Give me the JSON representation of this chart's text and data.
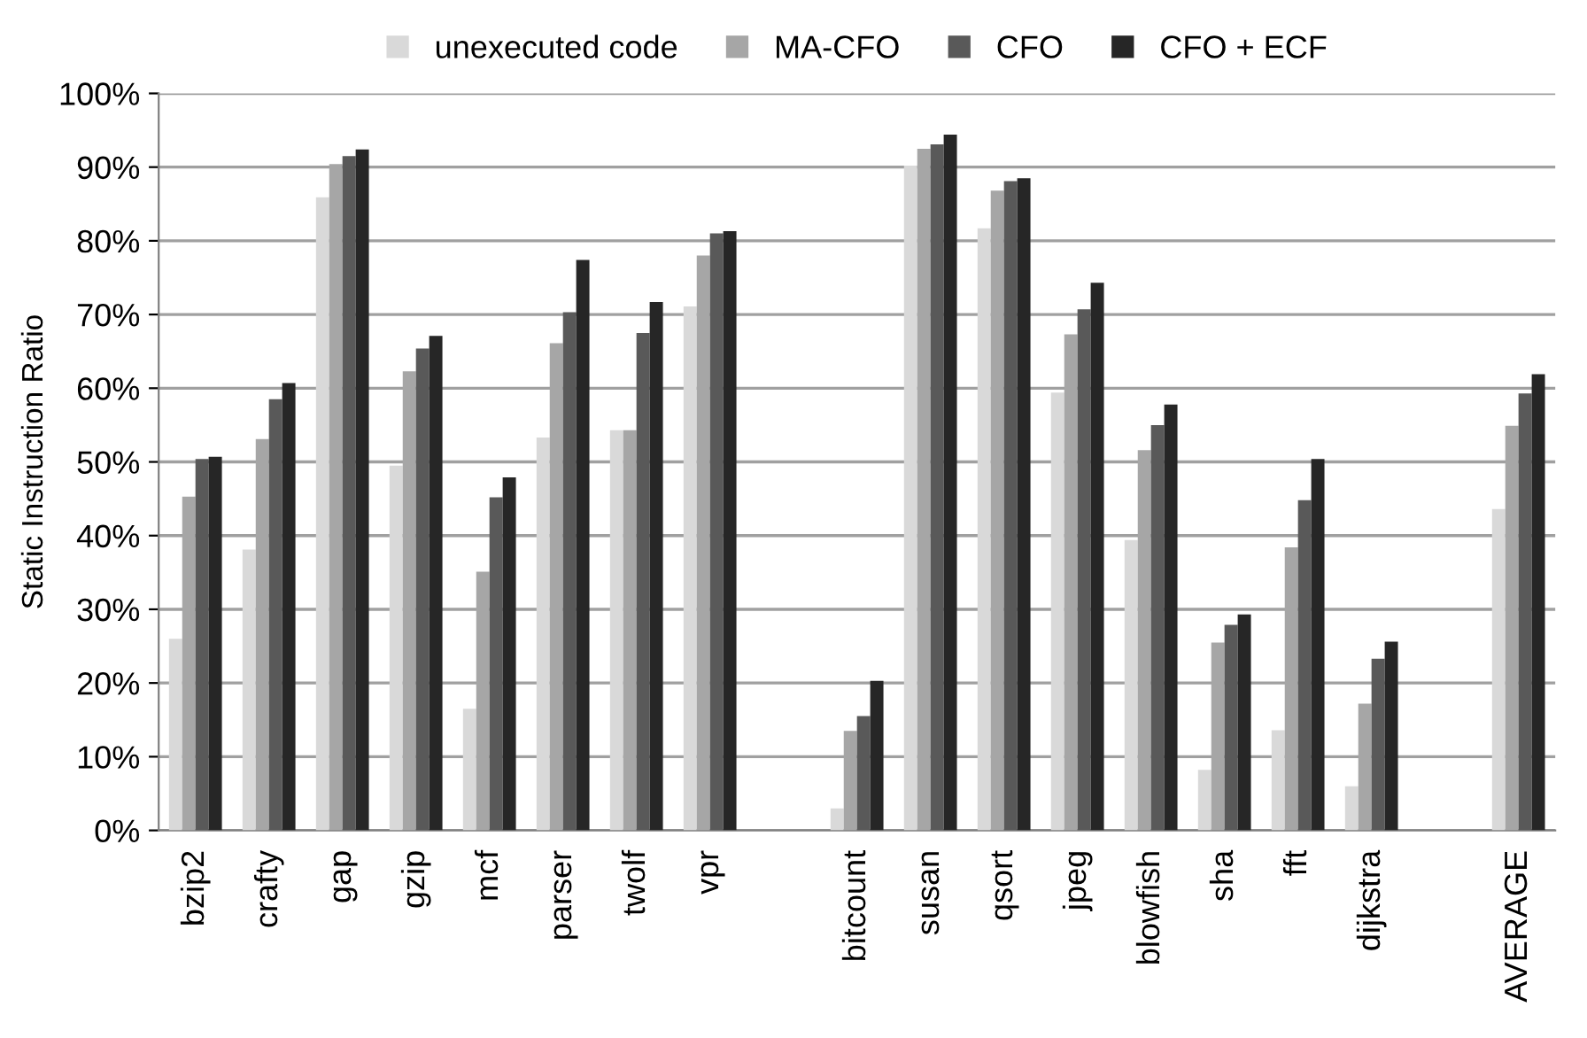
{
  "chart_data": {
    "type": "bar",
    "ylabel": "Static Instruction Ratio",
    "categories": [
      "bzip2",
      "crafty",
      "gap",
      "gzip",
      "mcf",
      "parser",
      "twolf",
      "vpr",
      null,
      "bitcount",
      "susan",
      "qsort",
      "jpeg",
      "blowfish",
      "sha",
      "fft",
      "dijkstra",
      null,
      "AVERAGE"
    ],
    "series": [
      {
        "name": "unexecuted code",
        "color": "#d9d9d9",
        "values": [
          26,
          38.1,
          85.9,
          49.5,
          16.5,
          53.3,
          54.3,
          71.1,
          null,
          3,
          90.2,
          81.7,
          59.4,
          39.4,
          8.2,
          13.6,
          6,
          null,
          43.6
        ]
      },
      {
        "name": "MA-CFO",
        "color": "#a6a6a6",
        "values": [
          45.3,
          53.1,
          90.4,
          62.3,
          35.1,
          66.1,
          54.3,
          78.0,
          null,
          13.5,
          92.5,
          86.8,
          67.3,
          51.6,
          25.5,
          38.4,
          17.2,
          null,
          54.9
        ]
      },
      {
        "name": "CFO",
        "color": "#595959",
        "values": [
          50.4,
          58.5,
          91.5,
          65.4,
          45.2,
          70.3,
          67.5,
          81.0,
          null,
          15.5,
          93.1,
          88.1,
          70.7,
          55.0,
          27.9,
          44.8,
          23.3,
          null,
          59.3
        ]
      },
      {
        "name": "CFO + ECF",
        "color": "#262626",
        "values": [
          50.7,
          60.7,
          92.4,
          67.1,
          47.9,
          77.4,
          71.7,
          81.3,
          null,
          20.3,
          94.4,
          88.5,
          74.3,
          57.8,
          29.3,
          50.4,
          25.6,
          null,
          61.9
        ]
      }
    ],
    "ylim": [
      0,
      100
    ],
    "yticks": [
      {
        "value": 0,
        "label": "0%"
      },
      {
        "value": 10,
        "label": "10%"
      },
      {
        "value": 20,
        "label": "20%"
      },
      {
        "value": 30,
        "label": "30%"
      },
      {
        "value": 40,
        "label": "40%"
      },
      {
        "value": 50,
        "label": "50%"
      },
      {
        "value": 60,
        "label": "60%"
      },
      {
        "value": 70,
        "label": "70%"
      },
      {
        "value": 80,
        "label": "80%"
      },
      {
        "value": 90,
        "label": "90%"
      },
      {
        "value": 100,
        "label": "100%"
      }
    ],
    "grid": "y",
    "legend": "top"
  }
}
